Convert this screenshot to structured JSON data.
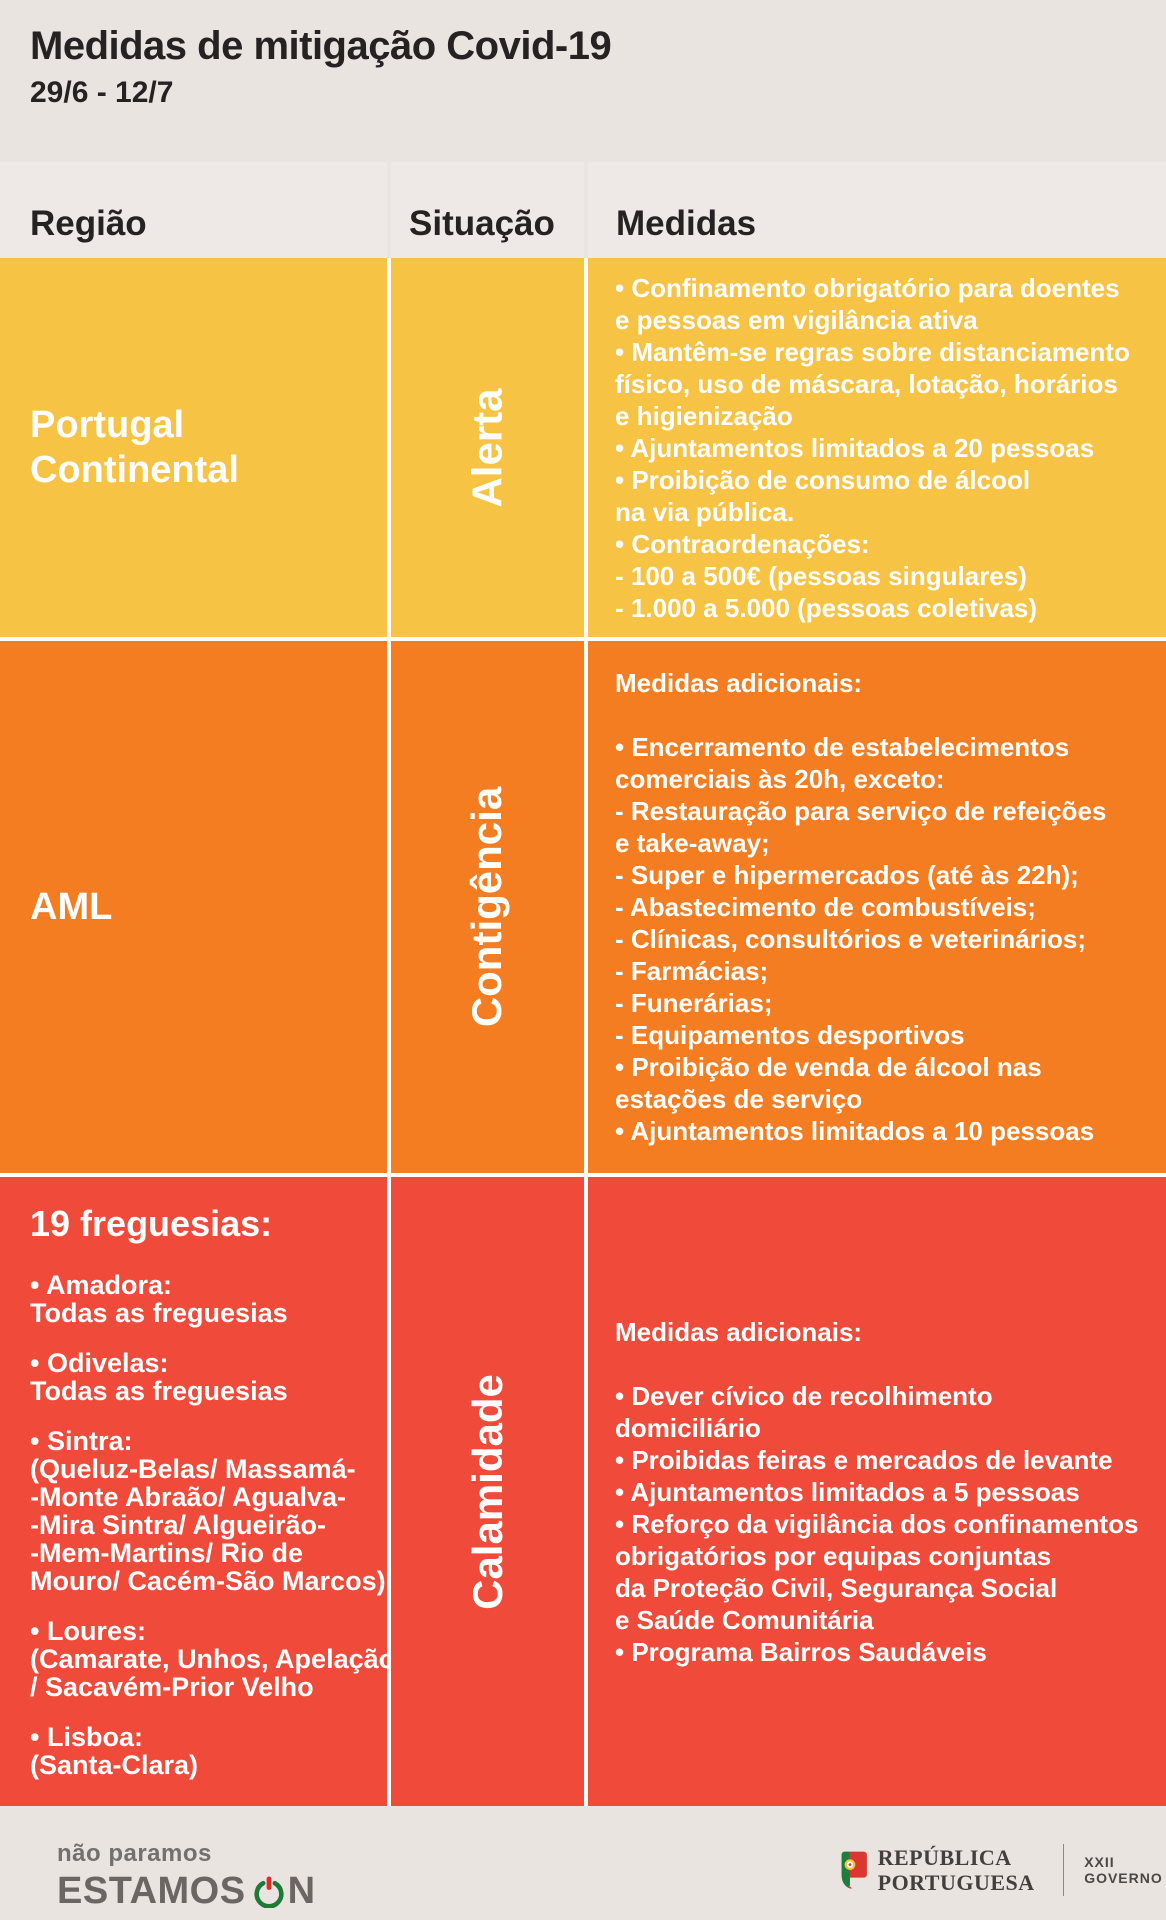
{
  "title": "Medidas de mitigação Covid-19",
  "subtitle": "29/6 - 12/7",
  "colors": {
    "alert_yellow": "#F6C344",
    "contingency_orange": "#F57D21",
    "calamity_red": "#F04A3A",
    "page_bg": "#EAE4E1",
    "header_cell_bg": "#EEE9E7",
    "text_dark": "#262122",
    "text_white": "#FFFFFF",
    "power_green": "#1F7A37",
    "power_red": "#DF2B26"
  },
  "table": {
    "headers": [
      "Região",
      "Situação",
      "Medidas"
    ],
    "rows": [
      {
        "region_title": "Portugal\nContinental",
        "situation": "Alerta",
        "measures_intro": "",
        "measures_lines": [
          [
            {
              "t": "• Confinamento obrigatório para doentes"
            }
          ],
          [
            {
              "t": "e pessoas em vigilância ativa"
            }
          ],
          [
            {
              "t": "• Mantêm-se regras sobre distanciamento"
            }
          ],
          [
            {
              "t": "físico, uso de máscara, lotação, horários"
            }
          ],
          [
            {
              "t": "e higienização"
            }
          ],
          [
            {
              "t": "• Ajuntamentos limitados a "
            },
            {
              "t": "20 pessoas",
              "b": true
            }
          ],
          [
            {
              "t": "• Proibição de consumo de álcool"
            }
          ],
          [
            {
              "t": "na via pública."
            }
          ],
          [
            {
              "t": "• Contraordenações:"
            }
          ],
          [
            {
              "t": "- 100 a 500€ (pessoas singulares)"
            }
          ],
          [
            {
              "t": "- 1.000 a 5.000 (pessoas coletivas)"
            }
          ]
        ]
      },
      {
        "region_title": "AML",
        "situation": "Contigência",
        "measures_intro": "Medidas adicionais:",
        "measures_lines": [
          [
            {
              "t": "• Encerramento de estabelecimentos"
            }
          ],
          [
            {
              "t": "comerciais às 20h, exceto:"
            }
          ],
          [
            {
              "t": "- Restauração para serviço de refeições"
            }
          ],
          [
            {
              "t": "e take-away;"
            }
          ],
          [
            {
              "t": "- Super e hipermercados (até às 22h);"
            }
          ],
          [
            {
              "t": "- Abastecimento de combustíveis;"
            }
          ],
          [
            {
              "t": "- Clínicas, consultórios e veterinários;"
            }
          ],
          [
            {
              "t": "- Farmácias;"
            }
          ],
          [
            {
              "t": "- Funerárias;"
            }
          ],
          [
            {
              "t": "- Equipamentos desportivos"
            }
          ],
          [
            {
              "t": "• Proibição de venda de álcool nas"
            }
          ],
          [
            {
              "t": "estações de serviço"
            }
          ],
          [
            {
              "t": "• Ajuntamentos limitados a "
            },
            {
              "t": "10 pessoas",
              "b": true
            }
          ]
        ]
      },
      {
        "region_heading": "19 freguesias:",
        "region_items": [
          {
            "label": "• Amadora:",
            "details": [
              "Todas as freguesias"
            ]
          },
          {
            "label": "• Odivelas:",
            "details": [
              "Todas as freguesias"
            ]
          },
          {
            "label": "• Sintra:",
            "details": [
              "(Queluz-Belas/ Massamá-",
              "-Monte Abraão/ Agualva-",
              "-Mira Sintra/ Algueirão-",
              "-Mem-Martins/ Rio de",
              "Mouro/ Cacém-São Marcos)"
            ]
          },
          {
            "label": "• Loures:",
            "details": [
              "(Camarate, Unhos, Apelação",
              "/ Sacavém-Prior Velho"
            ]
          },
          {
            "label": "• Lisboa:",
            "details": [
              "(Santa-Clara)"
            ]
          }
        ],
        "situation": "Calamidade",
        "measures_intro": "Medidas adicionais:",
        "measures_lines": [
          [
            {
              "t": "• Dever cívico de recolhimento"
            }
          ],
          [
            {
              "t": "domiciliário"
            }
          ],
          [
            {
              "t": "• Proibidas feiras e mercados de levante"
            }
          ],
          [
            {
              "t": "• Ajuntamentos limitados a "
            },
            {
              "t": "5 pessoas",
              "b": true
            }
          ],
          [
            {
              "t": "• Reforço da vigilância dos confinamentos"
            }
          ],
          [
            {
              "t": "obrigatórios por equipas conjuntas"
            }
          ],
          [
            {
              "t": "da Proteção Civil, Segurança Social"
            }
          ],
          [
            {
              "t": "e Saúde Comunitária"
            }
          ],
          [
            {
              "t": "• Programa Bairros Saudáveis"
            }
          ]
        ]
      }
    ]
  },
  "footer": {
    "tagline_top": "não paramos",
    "tagline_word": "ESTAMOS",
    "tagline_word_end": "N",
    "gov_name_line1": "REPÚBLICA",
    "gov_name_line2": "PORTUGUESA",
    "gov_label": "XXII GOVERNO"
  }
}
